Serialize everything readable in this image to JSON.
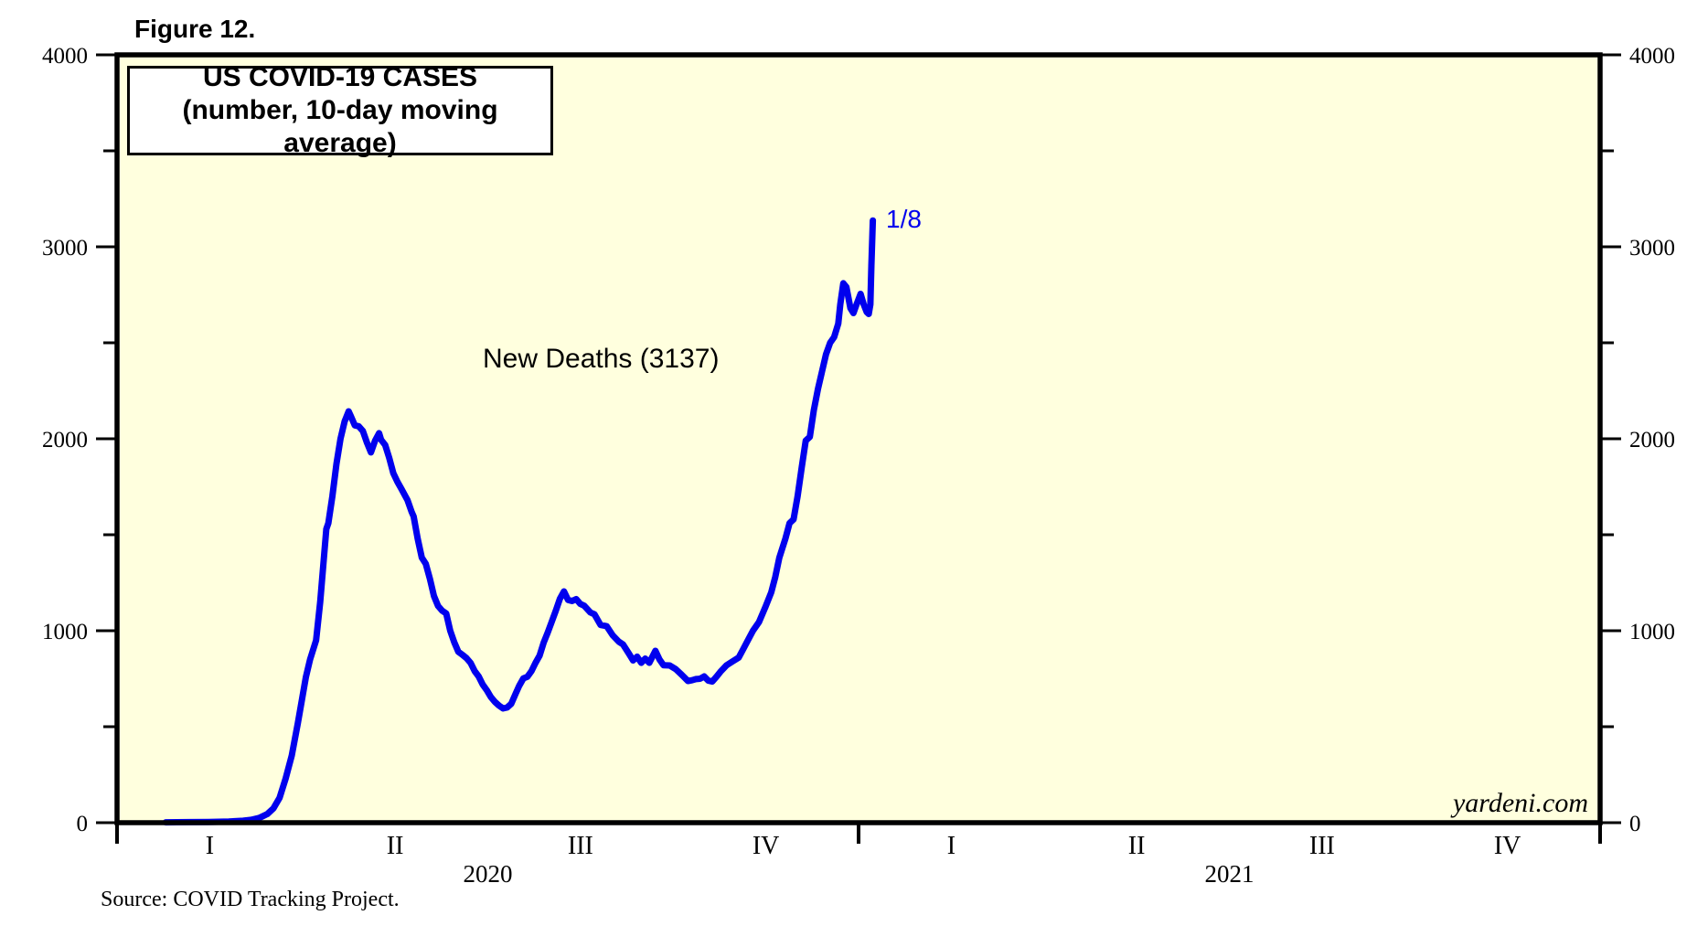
{
  "figure_label": "Figure 12.",
  "title": {
    "line1": "US COVID-19 CASES",
    "line2": "(number, 10-day moving average)"
  },
  "series_label": "New Deaths (3137)",
  "last_point_label": "1/8",
  "watermark": "yardeni.com",
  "source": "Source: COVID Tracking Project.",
  "colors": {
    "line": "#0000EE",
    "plot_background": "#FFFFDE",
    "axis": "#000000",
    "annotation_blue": "#0000EE"
  },
  "y_axis": {
    "min": 0,
    "max": 4000,
    "major_ticks": [
      0,
      1000,
      2000,
      3000,
      4000
    ],
    "minor_ticks": [
      500,
      1500,
      2500,
      3500
    ],
    "labels": [
      "0",
      "1000",
      "2000",
      "3000",
      "4000"
    ],
    "sides": [
      "left",
      "right"
    ]
  },
  "x_axis": {
    "years": [
      {
        "label": "2020",
        "quarters": [
          "I",
          "II",
          "III",
          "IV"
        ]
      },
      {
        "label": "2021",
        "quarters": [
          "I",
          "II",
          "III",
          "IV"
        ]
      }
    ]
  },
  "chart_data": {
    "type": "line",
    "title": "US COVID-19 CASES (number, 10-day moving average)",
    "ylabel": "",
    "xlabel": "",
    "ylim": [
      0,
      4000
    ],
    "x_range": [
      "2020-01-01",
      "2021-12-31"
    ],
    "grid": false,
    "legend": "inline text annotation",
    "series": [
      {
        "name": "New Deaths",
        "color": "#0000EE",
        "final_value": 3137,
        "final_date_label": "1/8",
        "x_unit": "days since 2020-01-01",
        "points": [
          [
            24,
            2
          ],
          [
            35,
            3
          ],
          [
            45,
            4
          ],
          [
            55,
            6
          ],
          [
            62,
            10
          ],
          [
            66,
            15
          ],
          [
            70,
            25
          ],
          [
            74,
            45
          ],
          [
            77,
            75
          ],
          [
            80,
            130
          ],
          [
            83,
            230
          ],
          [
            86,
            350
          ],
          [
            89,
            520
          ],
          [
            91,
            640
          ],
          [
            93,
            760
          ],
          [
            95,
            850
          ],
          [
            98,
            950
          ],
          [
            100,
            1150
          ],
          [
            102,
            1400
          ],
          [
            103,
            1530
          ],
          [
            104,
            1560
          ],
          [
            106,
            1700
          ],
          [
            108,
            1870
          ],
          [
            110,
            2000
          ],
          [
            112,
            2090
          ],
          [
            114,
            2143
          ],
          [
            115,
            2120
          ],
          [
            117,
            2070
          ],
          [
            119,
            2065
          ],
          [
            121,
            2040
          ],
          [
            123,
            1980
          ],
          [
            125,
            1929
          ],
          [
            127,
            1990
          ],
          [
            129,
            2029
          ],
          [
            130,
            1995
          ],
          [
            132,
            1967
          ],
          [
            134,
            1900
          ],
          [
            136,
            1820
          ],
          [
            138,
            1776
          ],
          [
            140,
            1738
          ],
          [
            143,
            1680
          ],
          [
            145,
            1619
          ],
          [
            146,
            1595
          ],
          [
            148,
            1480
          ],
          [
            150,
            1381
          ],
          [
            152,
            1348
          ],
          [
            154,
            1270
          ],
          [
            156,
            1181
          ],
          [
            158,
            1129
          ],
          [
            160,
            1105
          ],
          [
            162,
            1090
          ],
          [
            164,
            1000
          ],
          [
            166,
            940
          ],
          [
            168,
            890
          ],
          [
            170,
            875
          ],
          [
            172,
            857
          ],
          [
            174,
            833
          ],
          [
            176,
            790
          ],
          [
            178,
            762
          ],
          [
            180,
            720
          ],
          [
            182,
            690
          ],
          [
            184,
            655
          ],
          [
            186,
            629
          ],
          [
            188,
            610
          ],
          [
            190,
            595
          ],
          [
            192,
            600
          ],
          [
            194,
            619
          ],
          [
            196,
            667
          ],
          [
            198,
            714
          ],
          [
            200,
            752
          ],
          [
            202,
            760
          ],
          [
            204,
            790
          ],
          [
            206,
            833
          ],
          [
            208,
            871
          ],
          [
            210,
            938
          ],
          [
            212,
            990
          ],
          [
            214,
            1048
          ],
          [
            216,
            1105
          ],
          [
            218,
            1167
          ],
          [
            220,
            1205
          ],
          [
            222,
            1160
          ],
          [
            224,
            1155
          ],
          [
            226,
            1165
          ],
          [
            228,
            1140
          ],
          [
            230,
            1130
          ],
          [
            233,
            1095
          ],
          [
            235,
            1085
          ],
          [
            238,
            1030
          ],
          [
            241,
            1024
          ],
          [
            244,
            976
          ],
          [
            247,
            943
          ],
          [
            249,
            929
          ],
          [
            252,
            880
          ],
          [
            254,
            845
          ],
          [
            256,
            865
          ],
          [
            258,
            833
          ],
          [
            260,
            855
          ],
          [
            262,
            833
          ],
          [
            265,
            895
          ],
          [
            267,
            850
          ],
          [
            269,
            820
          ],
          [
            272,
            819
          ],
          [
            275,
            800
          ],
          [
            278,
            770
          ],
          [
            281,
            738
          ],
          [
            283,
            742
          ],
          [
            285,
            748
          ],
          [
            287,
            750
          ],
          [
            289,
            762
          ],
          [
            291,
            740
          ],
          [
            293,
            735
          ],
          [
            295,
            760
          ],
          [
            297,
            786
          ],
          [
            300,
            820
          ],
          [
            303,
            840
          ],
          [
            306,
            860
          ],
          [
            308,
            900
          ],
          [
            310,
            940
          ],
          [
            313,
            1000
          ],
          [
            316,
            1045
          ],
          [
            319,
            1120
          ],
          [
            322,
            1200
          ],
          [
            324,
            1280
          ],
          [
            326,
            1380
          ],
          [
            329,
            1480
          ],
          [
            331,
            1560
          ],
          [
            333,
            1580
          ],
          [
            335,
            1700
          ],
          [
            337,
            1850
          ],
          [
            339,
            1990
          ],
          [
            341,
            2010
          ],
          [
            343,
            2150
          ],
          [
            345,
            2260
          ],
          [
            347,
            2350
          ],
          [
            349,
            2440
          ],
          [
            351,
            2500
          ],
          [
            353,
            2530
          ],
          [
            355,
            2600
          ],
          [
            356,
            2700
          ],
          [
            357.5,
            2810
          ],
          [
            359,
            2790
          ],
          [
            361,
            2680
          ],
          [
            362.5,
            2655
          ],
          [
            364,
            2700
          ],
          [
            366,
            2755
          ],
          [
            367.5,
            2700
          ],
          [
            369,
            2660
          ],
          [
            370,
            2650
          ],
          [
            370.8,
            2700
          ],
          [
            371.3,
            2900
          ],
          [
            372,
            3137
          ]
        ]
      }
    ]
  }
}
